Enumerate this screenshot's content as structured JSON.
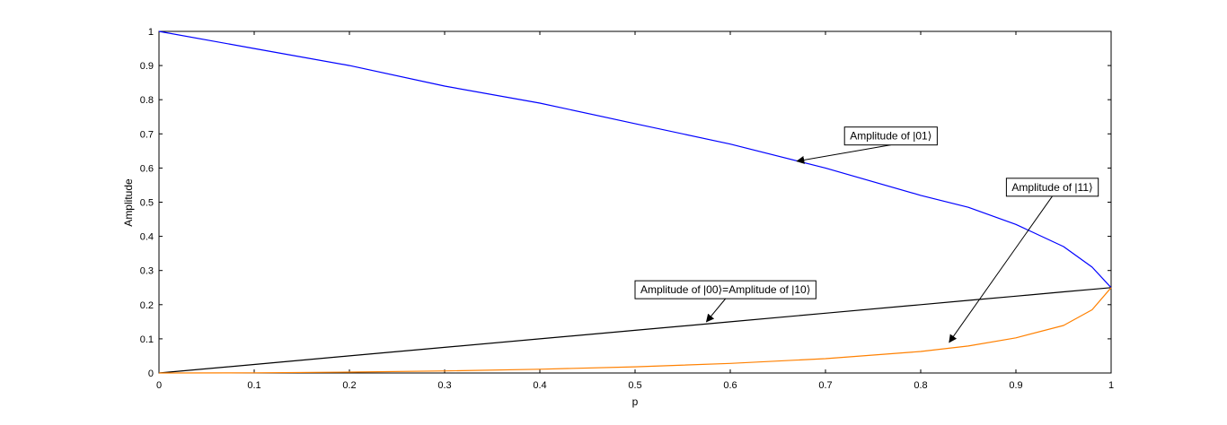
{
  "chart_data": {
    "type": "line",
    "title": "",
    "xlabel": "p",
    "ylabel": "Amplitude",
    "xlim": [
      0,
      1
    ],
    "ylim": [
      0,
      1
    ],
    "xticks": [
      "0",
      "0.1",
      "0.2",
      "0.3",
      "0.4",
      "0.5",
      "0.6",
      "0.7",
      "0.8",
      "0.9",
      "1"
    ],
    "yticks": [
      "0",
      "0.1",
      "0.2",
      "0.3",
      "0.4",
      "0.5",
      "0.6",
      "0.7",
      "0.8",
      "0.9",
      "1"
    ],
    "grid": false,
    "x": [
      0,
      0.1,
      0.2,
      0.3,
      0.4,
      0.5,
      0.6,
      0.7,
      0.8,
      0.85,
      0.9,
      0.95,
      0.98,
      1.0
    ],
    "series": [
      {
        "color": "#0000ff",
        "values": [
          1.0,
          0.95,
          0.9,
          0.84,
          0.79,
          0.73,
          0.67,
          0.6,
          0.52,
          0.485,
          0.435,
          0.37,
          0.31,
          0.25
        ]
      },
      {
        "color": "#000000",
        "values": [
          0.0,
          0.025,
          0.05,
          0.075,
          0.1,
          0.125,
          0.15,
          0.175,
          0.2,
          0.2125,
          0.225,
          0.2375,
          0.245,
          0.25
        ]
      },
      {
        "color": "#ff8000",
        "values": [
          0.0,
          0.0006,
          0.0025,
          0.006,
          0.011,
          0.018,
          0.028,
          0.042,
          0.063,
          0.079,
          0.103,
          0.139,
          0.185,
          0.25
        ]
      }
    ],
    "annotations": [
      {
        "text": "Amplitude of |01⟩",
        "point": [
          0.67,
          0.62
        ],
        "box_anchor": [
          0.72,
          0.72
        ]
      },
      {
        "text": "Amplitude of |11⟩",
        "point": [
          0.83,
          0.09
        ],
        "box_anchor": [
          0.89,
          0.57
        ]
      },
      {
        "text": "Amplitude of |00⟩=Amplitude of |10⟩",
        "point": [
          0.575,
          0.15
        ],
        "box_anchor": [
          0.5,
          0.27
        ]
      }
    ]
  }
}
